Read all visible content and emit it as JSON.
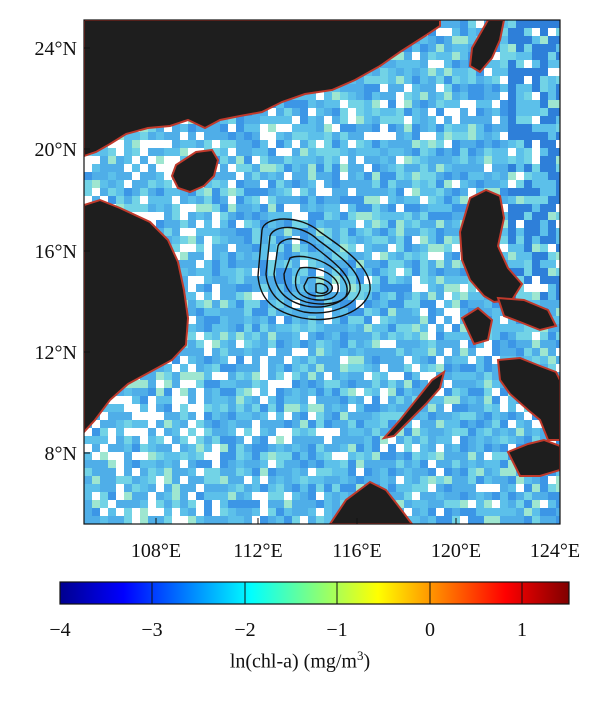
{
  "map": {
    "lat_ticks": [
      "24°N",
      "20°N",
      "16°N",
      "12°N",
      "8°N"
    ],
    "lon_ticks": [
      "108°E",
      "112°E",
      "116°E",
      "120°E",
      "124°E"
    ],
    "land_color": "#1e1e1e",
    "coast_color": "#c0392b",
    "contour_color": "#111111",
    "ocean_palette": [
      "#ffffff",
      "#2e7fd9",
      "#3c96e6",
      "#4faee8",
      "#5cc0ea",
      "#72d3e6",
      "#9ee6d0"
    ]
  },
  "colorbar": {
    "tick_labels": [
      "−4",
      "−3",
      "−2",
      "−1",
      "0",
      "1"
    ],
    "label_prefix": "ln(chl-a) (mg/m",
    "label_sup": "3",
    "label_suffix": ")",
    "range": [
      -4,
      1.5
    ],
    "colors": [
      "#00008f",
      "#0000ff",
      "#0080ff",
      "#00ffff",
      "#80ff80",
      "#ffff00",
      "#ff8000",
      "#ff0000",
      "#800000"
    ]
  }
}
